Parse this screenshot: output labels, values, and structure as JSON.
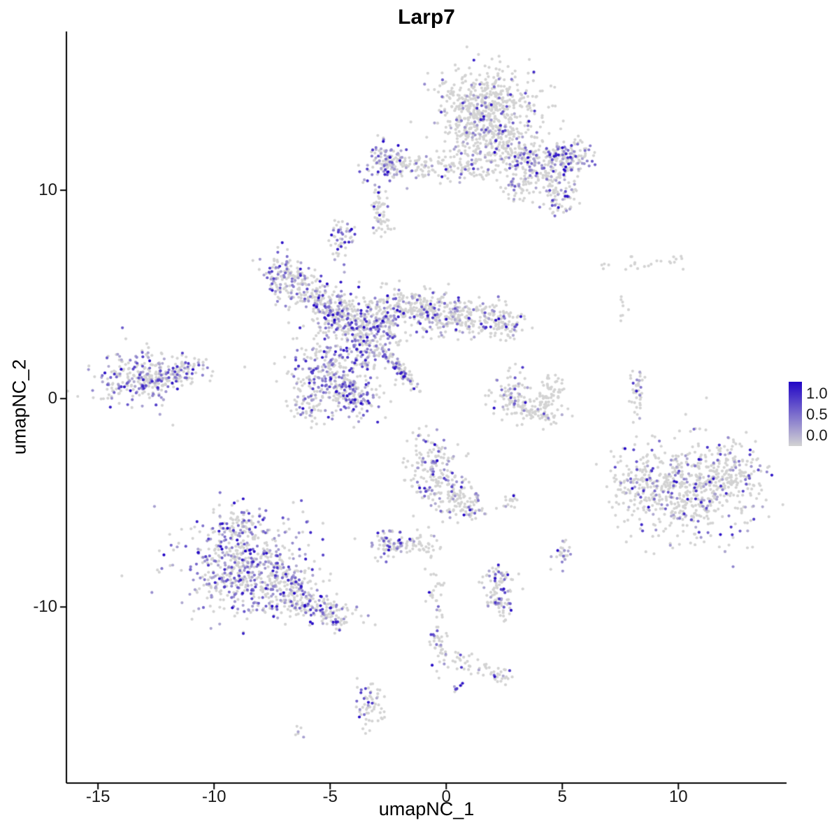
{
  "title": "Larp7",
  "chart_data": {
    "type": "scatter",
    "title": "Larp7",
    "xlabel": "umapNC_1",
    "ylabel": "umapNC_2",
    "xlim": [
      -16.36,
      14.66
    ],
    "ylim": [
      -18.45,
      17.62
    ],
    "x_ticks": [
      -15,
      -10,
      -5,
      0,
      5,
      10
    ],
    "y_ticks": [
      -10,
      0,
      10
    ],
    "grid": false,
    "point_radius": 2.1,
    "seed": 7,
    "legend": {
      "position": "right",
      "labels": [
        "1.0",
        "0.5",
        "0.0"
      ],
      "values": [
        1.0,
        0.5,
        0.0
      ],
      "color_high": "#2105c6",
      "color_low": "#d3d3d3"
    },
    "clusters": [
      {
        "cx": 1.8,
        "cy": 14.1,
        "sx": 1.05,
        "sy": 0.85,
        "n": 480,
        "p": 0.12
      },
      {
        "cx": 2.7,
        "cy": 12.4,
        "sx": 0.8,
        "sy": 0.7,
        "n": 150,
        "p": 0.15
      },
      {
        "cx": 1.0,
        "cy": 12.8,
        "sx": 0.5,
        "sy": 0.5,
        "n": 80,
        "p": 0.15
      },
      {
        "cx": 4.0,
        "cy": 11.3,
        "sx": 0.9,
        "sy": 0.45,
        "n": 170,
        "p": 0.3,
        "rot": -20
      },
      {
        "cx": 5.3,
        "cy": 11.6,
        "sx": 0.5,
        "sy": 0.35,
        "n": 120,
        "p": 0.45
      },
      {
        "cx": 4.9,
        "cy": 9.7,
        "sx": 0.4,
        "sy": 0.5,
        "n": 70,
        "p": 0.3
      },
      {
        "cx": -2.6,
        "cy": 11.3,
        "sx": 0.45,
        "sy": 0.5,
        "n": 110,
        "p": 0.5
      },
      {
        "cx": -0.9,
        "cy": 11.1,
        "sx": 0.9,
        "sy": 0.3,
        "n": 90,
        "p": 0.15
      },
      {
        "cx": 0.9,
        "cy": 11.2,
        "sx": 0.7,
        "sy": 0.4,
        "n": 80,
        "p": 0.2
      },
      {
        "cx": 3.2,
        "cy": 10.3,
        "sx": 0.5,
        "sy": 0.45,
        "n": 60,
        "p": 0.25
      },
      {
        "cx": -2.8,
        "cy": 8.6,
        "sx": 0.25,
        "sy": 0.5,
        "n": 40,
        "p": 0.1
      },
      {
        "cx": -2.9,
        "cy": 9.5,
        "sx": 0.2,
        "sy": 0.3,
        "n": 20,
        "p": 0.1
      },
      {
        "cx": -4.5,
        "cy": 7.6,
        "sx": 0.3,
        "sy": 0.5,
        "n": 55,
        "p": 0.35
      },
      {
        "cx": -6.9,
        "cy": 5.9,
        "sx": 0.5,
        "sy": 0.55,
        "n": 120,
        "p": 0.4
      },
      {
        "cx": -5.6,
        "cy": 4.8,
        "sx": 0.8,
        "sy": 0.45,
        "n": 160,
        "p": 0.35,
        "rot": -35
      },
      {
        "cx": -4.2,
        "cy": 3.9,
        "sx": 0.7,
        "sy": 0.65,
        "n": 200,
        "p": 0.4
      },
      {
        "cx": -3.2,
        "cy": 3.0,
        "sx": 0.6,
        "sy": 0.8,
        "n": 220,
        "p": 0.45
      },
      {
        "cx": -1.8,
        "cy": 4.3,
        "sx": 0.9,
        "sy": 0.55,
        "n": 180,
        "p": 0.2
      },
      {
        "cx": -0.2,
        "cy": 4.1,
        "sx": 0.8,
        "sy": 0.55,
        "n": 160,
        "p": 0.2
      },
      {
        "cx": 1.5,
        "cy": 3.9,
        "sx": 0.8,
        "sy": 0.5,
        "n": 140,
        "p": 0.25
      },
      {
        "cx": 2.7,
        "cy": 3.5,
        "sx": 0.4,
        "sy": 0.4,
        "n": 60,
        "p": 0.2
      },
      {
        "cx": -5.0,
        "cy": 1.5,
        "sx": 0.8,
        "sy": 0.65,
        "n": 200,
        "p": 0.4
      },
      {
        "cx": -4.2,
        "cy": 0.2,
        "sx": 0.7,
        "sy": 0.6,
        "n": 180,
        "p": 0.45
      },
      {
        "cx": -5.9,
        "cy": -0.3,
        "sx": 0.4,
        "sy": 0.4,
        "n": 60,
        "p": 0.3
      },
      {
        "cx": -1.9,
        "cy": 1.3,
        "sx": 0.6,
        "sy": 0.12,
        "n": 90,
        "p": 0.3,
        "rot": -51
      },
      {
        "cx": -13.2,
        "cy": 0.9,
        "sx": 0.85,
        "sy": 0.65,
        "n": 260,
        "p": 0.35
      },
      {
        "cx": -11.4,
        "cy": 1.3,
        "sx": 0.7,
        "sy": 0.35,
        "n": 100,
        "p": 0.3,
        "rot": 20
      },
      {
        "cx": 2.8,
        "cy": 0.2,
        "sx": 0.5,
        "sy": 0.55,
        "n": 80,
        "p": 0.25
      },
      {
        "cx": 3.9,
        "cy": -0.6,
        "sx": 0.6,
        "sy": 0.35,
        "n": 90,
        "p": 0.05
      },
      {
        "cx": 4.5,
        "cy": 0.4,
        "sx": 0.3,
        "sy": 0.45,
        "n": 45,
        "p": 0.05
      },
      {
        "cx": 8.2,
        "cy": 0.4,
        "sx": 0.15,
        "sy": 0.65,
        "n": 45,
        "p": 0.1
      },
      {
        "cx": 8.0,
        "cy": 6.5,
        "sx": 0.55,
        "sy": 0.2,
        "n": 14,
        "p": 0
      },
      {
        "cx": 9.8,
        "cy": 6.6,
        "sx": 0.4,
        "sy": 0.2,
        "n": 10,
        "p": 0
      },
      {
        "cx": 7.6,
        "cy": 4.4,
        "sx": 0.15,
        "sy": 0.3,
        "n": 8,
        "p": 0
      },
      {
        "cx": 10.3,
        "cy": -4.4,
        "sx": 1.45,
        "sy": 1.25,
        "n": 540,
        "p": 0.18
      },
      {
        "cx": 12.3,
        "cy": -3.6,
        "sx": 0.65,
        "sy": 0.8,
        "n": 150,
        "p": 0.15
      },
      {
        "cx": 8.3,
        "cy": -4.0,
        "sx": 0.5,
        "sy": 0.6,
        "n": 80,
        "p": 0.2
      },
      {
        "cx": -0.6,
        "cy": -3.3,
        "sx": 0.55,
        "sy": 0.9,
        "n": 160,
        "p": 0.3
      },
      {
        "cx": 0.3,
        "cy": -4.7,
        "sx": 0.5,
        "sy": 0.5,
        "n": 80,
        "p": 0.25
      },
      {
        "cx": 1.0,
        "cy": -5.3,
        "sx": 0.3,
        "sy": 0.3,
        "n": 40,
        "p": 0.2
      },
      {
        "cx": 2.8,
        "cy": -4.9,
        "sx": 0.2,
        "sy": 0.2,
        "n": 15,
        "p": 0.1
      },
      {
        "cx": -2.5,
        "cy": -6.9,
        "sx": 0.4,
        "sy": 0.4,
        "n": 70,
        "p": 0.55
      },
      {
        "cx": -1.2,
        "cy": -7.0,
        "sx": 0.5,
        "sy": 0.3,
        "n": 50,
        "p": 0.1
      },
      {
        "cx": -8.7,
        "cy": -8.0,
        "sx": 1.3,
        "sy": 1.15,
        "n": 600,
        "p": 0.45
      },
      {
        "cx": -6.6,
        "cy": -9.4,
        "sx": 0.8,
        "sy": 0.55,
        "n": 180,
        "p": 0.35,
        "rot": -25
      },
      {
        "cx": -4.9,
        "cy": -10.2,
        "sx": 0.6,
        "sy": 0.4,
        "n": 90,
        "p": 0.3,
        "rot": -20
      },
      {
        "cx": -9.0,
        "cy": -6.0,
        "sx": 0.5,
        "sy": 0.4,
        "n": 60,
        "p": 0.3
      },
      {
        "cx": 2.3,
        "cy": -8.9,
        "sx": 0.4,
        "sy": 0.5,
        "n": 70,
        "p": 0.3
      },
      {
        "cx": 2.4,
        "cy": -10.0,
        "sx": 0.3,
        "sy": 0.3,
        "n": 40,
        "p": 0.2
      },
      {
        "cx": 5.0,
        "cy": -7.3,
        "sx": 0.2,
        "sy": 0.45,
        "n": 25,
        "p": 0.3
      },
      {
        "cx": -0.5,
        "cy": -9.4,
        "sx": 0.2,
        "sy": 0.45,
        "n": 25,
        "p": 0.1
      },
      {
        "cx": -0.3,
        "cy": -11.8,
        "sx": 0.25,
        "sy": 0.6,
        "n": 40,
        "p": 0.3
      },
      {
        "cx": 0.9,
        "cy": -12.7,
        "sx": 0.5,
        "sy": 0.25,
        "n": 30,
        "p": 0.1,
        "rot": -25
      },
      {
        "cx": 2.3,
        "cy": -13.3,
        "sx": 0.3,
        "sy": 0.25,
        "n": 25,
        "p": 0.1
      },
      {
        "cx": -3.3,
        "cy": -14.6,
        "sx": 0.3,
        "sy": 0.6,
        "n": 60,
        "p": 0.25
      },
      {
        "cx": 0.5,
        "cy": -13.9,
        "sx": 0.12,
        "sy": 0.15,
        "n": 8,
        "p": 0.8
      },
      {
        "cx": -6.2,
        "cy": -15.9,
        "sx": 0.15,
        "sy": 0.15,
        "n": 6,
        "p": 0.2
      }
    ]
  }
}
